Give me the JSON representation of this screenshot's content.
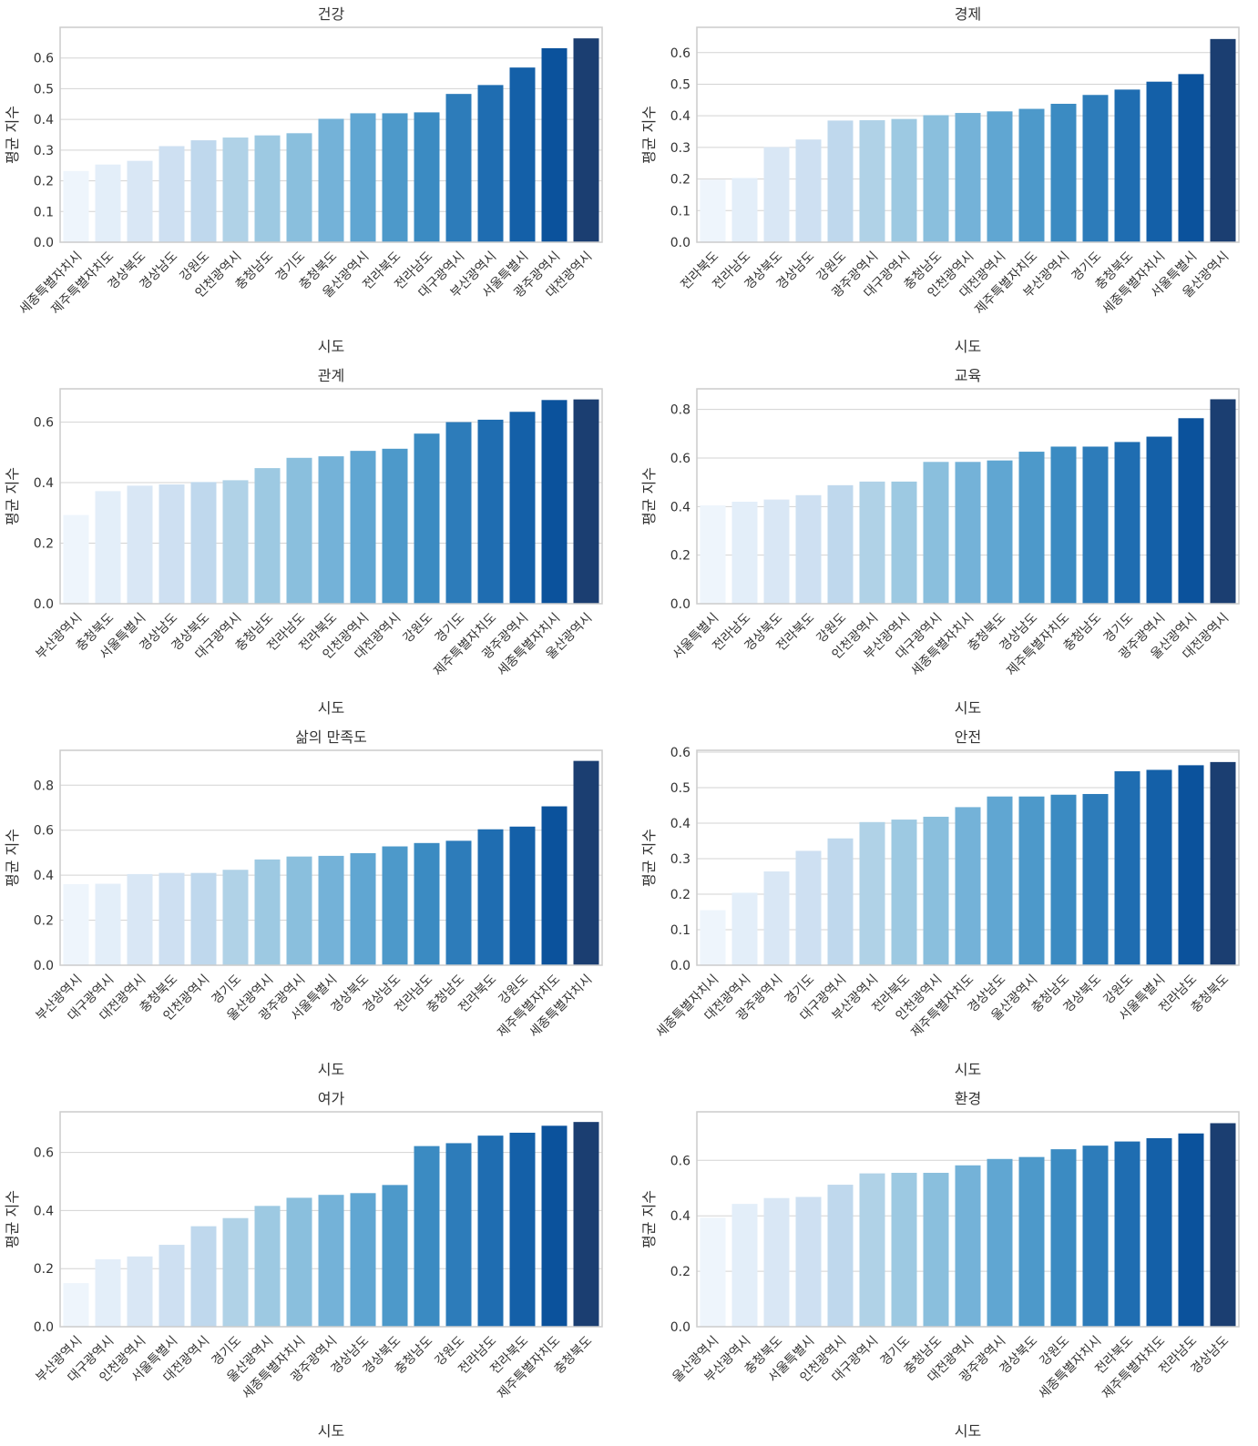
{
  "chart_data": [
    {
      "type": "bar",
      "title": "건강",
      "xlabel": "시도",
      "ylabel": "평균 지수",
      "ylim": [
        0,
        0.7
      ],
      "yticks": [
        "0.0",
        "0.1",
        "0.2",
        "0.3",
        "0.4",
        "0.5",
        "0.6"
      ],
      "categories": [
        "세종특별자치시",
        "제주특별자치도",
        "경상북도",
        "경상남도",
        "강원도",
        "인천광역시",
        "충청남도",
        "경기도",
        "충청북도",
        "울산광역시",
        "전라북도",
        "전라남도",
        "대구광역시",
        "부산광역시",
        "서울특별시",
        "광주광역시",
        "대전광역시"
      ],
      "values": [
        0.232,
        0.253,
        0.265,
        0.313,
        0.332,
        0.341,
        0.348,
        0.355,
        0.402,
        0.42,
        0.42,
        0.423,
        0.483,
        0.512,
        0.569,
        0.632,
        0.664
      ]
    },
    {
      "type": "bar",
      "title": "경제",
      "xlabel": "시도",
      "ylabel": "평균 지수",
      "ylim": [
        0,
        0.68
      ],
      "yticks": [
        "0.0",
        "0.1",
        "0.2",
        "0.3",
        "0.4",
        "0.5",
        "0.6"
      ],
      "categories": [
        "전라북도",
        "전라남도",
        "경상북도",
        "경상남도",
        "강원도",
        "광주광역시",
        "대구광역시",
        "충청남도",
        "인천광역시",
        "대전광역시",
        "제주특별자치도",
        "부산광역시",
        "경기도",
        "충청북도",
        "세종특별자치시",
        "서울특별시",
        "울산광역시"
      ],
      "values": [
        0.198,
        0.203,
        0.301,
        0.325,
        0.385,
        0.386,
        0.39,
        0.402,
        0.409,
        0.414,
        0.422,
        0.438,
        0.466,
        0.483,
        0.508,
        0.532,
        0.643
      ]
    },
    {
      "type": "bar",
      "title": "관계",
      "xlabel": "시도",
      "ylabel": "평균 지수",
      "ylim": [
        0,
        0.71
      ],
      "yticks": [
        "0.0",
        "0.2",
        "0.4",
        "0.6"
      ],
      "categories": [
        "부산광역시",
        "충청북도",
        "서울특별시",
        "경상남도",
        "경상북도",
        "대구광역시",
        "충청남도",
        "전라남도",
        "전라북도",
        "인천광역시",
        "대전광역시",
        "강원도",
        "경기도",
        "제주특별자치도",
        "광주광역시",
        "세종특별자치시",
        "울산광역시"
      ],
      "values": [
        0.293,
        0.372,
        0.39,
        0.394,
        0.402,
        0.408,
        0.448,
        0.482,
        0.487,
        0.505,
        0.512,
        0.562,
        0.6,
        0.608,
        0.634,
        0.673,
        0.675
      ]
    },
    {
      "type": "bar",
      "title": "교육",
      "xlabel": "시도",
      "ylabel": "평균 지수",
      "ylim": [
        0,
        0.885
      ],
      "yticks": [
        "0.0",
        "0.2",
        "0.4",
        "0.6",
        "0.8"
      ],
      "categories": [
        "서울특별시",
        "전라남도",
        "경상북도",
        "전라북도",
        "강원도",
        "인천광역시",
        "부산광역시",
        "대구광역시",
        "세종특별자치시",
        "충청북도",
        "경상남도",
        "제주특별자치도",
        "충청남도",
        "경기도",
        "광주광역시",
        "울산광역시",
        "대전광역시"
      ],
      "values": [
        0.405,
        0.42,
        0.429,
        0.447,
        0.488,
        0.503,
        0.503,
        0.584,
        0.584,
        0.59,
        0.626,
        0.647,
        0.647,
        0.666,
        0.688,
        0.764,
        0.842
      ]
    },
    {
      "type": "bar",
      "title": "삶의 만족도",
      "xlabel": "시도",
      "ylabel": "평균 지수",
      "ylim": [
        0,
        0.955
      ],
      "yticks": [
        "0.0",
        "0.2",
        "0.4",
        "0.6",
        "0.8"
      ],
      "categories": [
        "부산광역시",
        "대구광역시",
        "대전광역시",
        "충청북도",
        "인천광역시",
        "경기도",
        "울산광역시",
        "광주광역시",
        "서울특별시",
        "경상북도",
        "경상남도",
        "전라남도",
        "충청남도",
        "전라북도",
        "강원도",
        "제주특별자치도",
        "세종특별자치시"
      ],
      "values": [
        0.36,
        0.362,
        0.405,
        0.41,
        0.41,
        0.424,
        0.47,
        0.483,
        0.486,
        0.498,
        0.528,
        0.543,
        0.553,
        0.604,
        0.616,
        0.706,
        0.908
      ]
    },
    {
      "type": "bar",
      "title": "안전",
      "xlabel": "시도",
      "ylabel": "평균 지수",
      "ylim": [
        0,
        0.605
      ],
      "yticks": [
        "0.0",
        "0.1",
        "0.2",
        "0.3",
        "0.4",
        "0.5",
        "0.6"
      ],
      "categories": [
        "세종특별자치시",
        "대전광역시",
        "광주광역시",
        "경기도",
        "대구광역시",
        "부산광역시",
        "전라북도",
        "인천광역시",
        "제주특별자치도",
        "경상남도",
        "울산광역시",
        "충청남도",
        "경상북도",
        "강원도",
        "서울특별시",
        "전라남도",
        "충청북도"
      ],
      "values": [
        0.155,
        0.204,
        0.264,
        0.322,
        0.357,
        0.403,
        0.41,
        0.418,
        0.445,
        0.475,
        0.475,
        0.48,
        0.482,
        0.546,
        0.55,
        0.563,
        0.572
      ]
    },
    {
      "type": "bar",
      "title": "여가",
      "xlabel": "시도",
      "ylabel": "평균 지수",
      "ylim": [
        0,
        0.74
      ],
      "yticks": [
        "0.0",
        "0.2",
        "0.4",
        "0.6"
      ],
      "categories": [
        "부산광역시",
        "대구광역시",
        "인천광역시",
        "서울특별시",
        "대전광역시",
        "경기도",
        "울산광역시",
        "세종특별자치시",
        "광주광역시",
        "경상남도",
        "경상북도",
        "충청남도",
        "강원도",
        "전라남도",
        "전라북도",
        "제주특별자치도",
        "충청북도"
      ],
      "values": [
        0.15,
        0.232,
        0.242,
        0.282,
        0.346,
        0.374,
        0.416,
        0.444,
        0.454,
        0.46,
        0.488,
        0.622,
        0.632,
        0.658,
        0.668,
        0.692,
        0.705
      ]
    },
    {
      "type": "bar",
      "title": "환경",
      "xlabel": "시도",
      "ylabel": "평균 지수",
      "ylim": [
        0,
        0.775
      ],
      "yticks": [
        "0.0",
        "0.2",
        "0.4",
        "0.6"
      ],
      "categories": [
        "울산광역시",
        "부산광역시",
        "충청북도",
        "서울특별시",
        "인천광역시",
        "대구광역시",
        "경기도",
        "충청남도",
        "대전광역시",
        "광주광역시",
        "경상북도",
        "강원도",
        "세종특별자치시",
        "전라북도",
        "제주특별자치도",
        "전라남도",
        "경상남도"
      ],
      "values": [
        0.393,
        0.443,
        0.464,
        0.468,
        0.512,
        0.553,
        0.555,
        0.555,
        0.582,
        0.605,
        0.612,
        0.64,
        0.653,
        0.668,
        0.68,
        0.697,
        0.734
      ]
    }
  ],
  "palette": [
    "#eef5fc",
    "#e3eef9",
    "#d9e7f5",
    "#cee0f2",
    "#bfd8ed",
    "#b0d2e7",
    "#9dc9e2",
    "#8abfdd",
    "#74b2d8",
    "#60a6d2",
    "#4d99ca",
    "#3b8bc2",
    "#2d7cba",
    "#1f6db1",
    "#1460a8",
    "#0b529c",
    "#1b3e71"
  ]
}
